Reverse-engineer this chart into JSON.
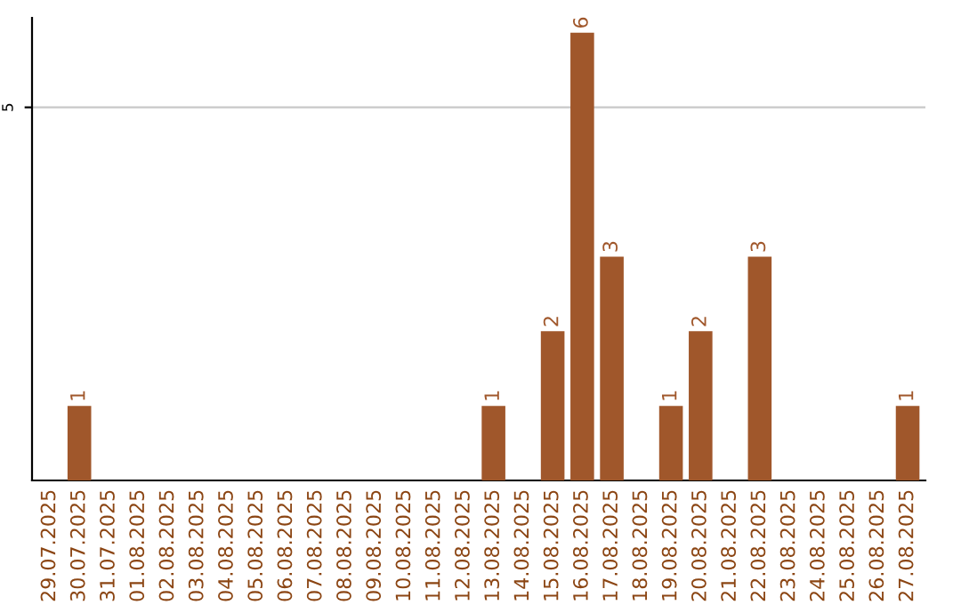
{
  "chart_data": {
    "type": "bar",
    "categories": [
      "29.07.2025",
      "30.07.2025",
      "31.07.2025",
      "01.08.2025",
      "02.08.2025",
      "03.08.2025",
      "04.08.2025",
      "05.08.2025",
      "06.08.2025",
      "07.08.2025",
      "08.08.2025",
      "09.08.2025",
      "10.08.2025",
      "11.08.2025",
      "12.08.2025",
      "13.08.2025",
      "14.08.2025",
      "15.08.2025",
      "16.08.2025",
      "17.08.2025",
      "18.08.2025",
      "19.08.2025",
      "20.08.2025",
      "21.08.2025",
      "22.08.2025",
      "23.08.2025",
      "24.08.2025",
      "25.08.2025",
      "26.08.2025",
      "27.08.2025"
    ],
    "values": [
      0,
      1,
      0,
      0,
      0,
      0,
      0,
      0,
      0,
      0,
      0,
      0,
      0,
      0,
      0,
      1,
      0,
      2,
      6,
      3,
      0,
      1,
      2,
      0,
      3,
      0,
      0,
      0,
      0,
      1
    ],
    "value_labels": [
      null,
      "1",
      null,
      null,
      null,
      null,
      null,
      null,
      null,
      null,
      null,
      null,
      null,
      null,
      null,
      "1",
      null,
      "2",
      "6",
      "3",
      null,
      "1",
      "2",
      null,
      "3",
      null,
      null,
      null,
      null,
      "1"
    ],
    "color": "#a0572b",
    "ylim": [
      0,
      6.2
    ],
    "yticks": [
      5
    ],
    "grid": "y"
  }
}
